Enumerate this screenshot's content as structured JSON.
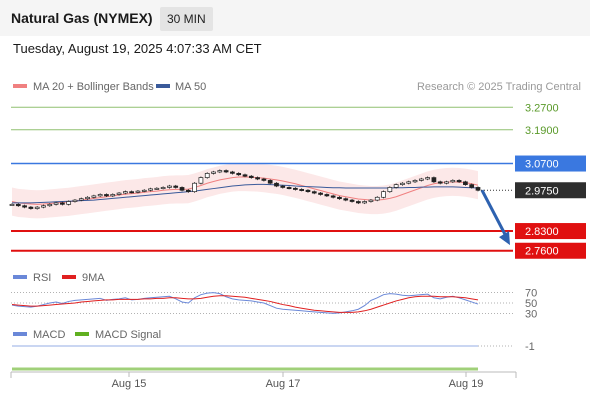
{
  "header": {
    "title": "Natural Gas (NYMEX)",
    "timeframe": "30 MIN",
    "datetime": "Tuesday, August 19, 2025 4:07:33 AM CET"
  },
  "colors": {
    "bollinger": "#f08080",
    "ma50": "#3a5a9a",
    "resistance": "#90c070",
    "pivot": "#3a78e0",
    "support": "#e01010",
    "rsi": "#6a88d8",
    "rsi_ma": "#e02020",
    "macd": "#6a88d8",
    "macd_signal": "#60b020",
    "arrow": "#2e62b0"
  },
  "chart_data": [
    {
      "type": "line",
      "legend": [
        {
          "name": "MA 20 + Bollinger Bands",
          "color": "#f08080"
        },
        {
          "name": "MA 50",
          "color": "#3a5a9a"
        }
      ],
      "legend_placement": "top-left",
      "attribution": "Research © 2025 Trading Central",
      "ylim": [
        2.72,
        3.31
      ],
      "levels": [
        {
          "value": 3.27,
          "label": "3.2700",
          "kind": "resistance"
        },
        {
          "value": 3.19,
          "label": "3.1900",
          "kind": "resistance"
        },
        {
          "value": 3.07,
          "label": "3.0700",
          "kind": "pivot"
        },
        {
          "value": 2.83,
          "label": "2.8300",
          "kind": "support"
        },
        {
          "value": 2.76,
          "label": "2.7600",
          "kind": "support"
        }
      ],
      "last_price": {
        "value": 2.975,
        "label": "2.9750"
      },
      "x_ticks": [
        "Aug 15",
        "Aug 17",
        "Aug 19"
      ],
      "close": [
        2.925,
        2.92,
        2.915,
        2.91,
        2.915,
        2.92,
        2.925,
        2.93,
        2.925,
        2.935,
        2.94,
        2.945,
        2.95,
        2.955,
        2.96,
        2.955,
        2.96,
        2.965,
        2.97,
        2.968,
        2.972,
        2.975,
        2.98,
        2.982,
        2.985,
        2.99,
        2.985,
        2.975,
        2.97,
        3.0,
        3.02,
        3.035,
        3.04,
        3.045,
        3.04,
        3.035,
        3.03,
        3.025,
        3.02,
        3.015,
        3.01,
        3.0,
        2.99,
        2.985,
        2.982,
        2.978,
        2.975,
        2.97,
        2.965,
        2.96,
        2.955,
        2.95,
        2.945,
        2.94,
        2.935,
        2.93,
        2.935,
        2.94,
        2.95,
        2.97,
        2.985,
        2.995,
        3.0,
        3.005,
        3.01,
        3.015,
        3.02,
        3.005,
        3.0,
        3.005,
        3.01,
        3.005,
        2.995,
        2.985,
        2.975
      ],
      "ma20": [
        2.935,
        2.93,
        2.928,
        2.926,
        2.925,
        2.926,
        2.928,
        2.93,
        2.932,
        2.934,
        2.937,
        2.94,
        2.943,
        2.946,
        2.949,
        2.952,
        2.955,
        2.958,
        2.961,
        2.963,
        2.965,
        2.968,
        2.97,
        2.972,
        2.975,
        2.977,
        2.978,
        2.978,
        2.979,
        2.985,
        2.992,
        3.0,
        3.006,
        3.012,
        3.016,
        3.02,
        3.022,
        3.022,
        3.021,
        3.02,
        3.018,
        3.015,
        3.012,
        3.008,
        3.003,
        2.998,
        2.992,
        2.986,
        2.98,
        2.974,
        2.968,
        2.962,
        2.956,
        2.952,
        2.948,
        2.944,
        2.942,
        2.94,
        2.94,
        2.942,
        2.946,
        2.952,
        2.96,
        2.968,
        2.976,
        2.984,
        2.992,
        2.998,
        3.002,
        3.004,
        3.005,
        3.004,
        3.002,
        2.998,
        2.993
      ],
      "ma50": [
        2.93,
        2.93,
        2.93,
        2.93,
        2.931,
        2.932,
        2.933,
        2.934,
        2.935,
        2.936,
        2.937,
        2.938,
        2.939,
        2.94,
        2.942,
        2.944,
        2.946,
        2.948,
        2.95,
        2.952,
        2.954,
        2.956,
        2.958,
        2.96,
        2.962,
        2.964,
        2.966,
        2.968,
        2.97,
        2.972,
        2.975,
        2.978,
        2.981,
        2.984,
        2.987,
        2.99,
        2.992,
        2.994,
        2.995,
        2.996,
        2.996,
        2.995,
        2.994,
        2.993,
        2.992,
        2.99,
        2.989,
        2.988,
        2.987,
        2.986,
        2.985,
        2.984,
        2.984,
        2.983,
        2.983,
        2.983,
        2.983,
        2.983,
        2.983,
        2.983,
        2.983,
        2.984,
        2.984,
        2.985,
        2.985,
        2.986,
        2.986,
        2.987,
        2.987,
        2.987,
        2.987,
        2.986,
        2.985,
        2.984,
        2.983
      ],
      "bb_half_width": 0.05,
      "forecast": {
        "from": 2.975,
        "to": 2.78
      }
    },
    {
      "type": "line",
      "legend": [
        {
          "name": "RSI",
          "color": "#6a88d8"
        },
        {
          "name": "9MA",
          "color": "#e02020"
        }
      ],
      "ylim": [
        25,
        75
      ],
      "levels": [
        {
          "value": 70,
          "label": "70"
        },
        {
          "value": 50,
          "label": "50"
        },
        {
          "value": 30,
          "label": "30"
        }
      ],
      "rsi": [
        46,
        44,
        43,
        42,
        44,
        47,
        50,
        52,
        49,
        53,
        55,
        56,
        57,
        58,
        59,
        55,
        57,
        58,
        60,
        56,
        57,
        59,
        60,
        61,
        62,
        63,
        58,
        52,
        50,
        60,
        66,
        69,
        70,
        68,
        62,
        58,
        56,
        55,
        54,
        52,
        50,
        45,
        40,
        38,
        37,
        36,
        35,
        34,
        33,
        32,
        31,
        30,
        31,
        33,
        35,
        38,
        45,
        55,
        60,
        66,
        68,
        67,
        65,
        64,
        65,
        66,
        67,
        60,
        58,
        61,
        63,
        60,
        56,
        52,
        48
      ],
      "rsi_ma": [
        47,
        46,
        45,
        44,
        44,
        45,
        46,
        47,
        48,
        49,
        50,
        52,
        53,
        54,
        55,
        56,
        56,
        57,
        57,
        57,
        57,
        58,
        58,
        59,
        59,
        60,
        60,
        59,
        58,
        58,
        59,
        61,
        63,
        64,
        64,
        63,
        62,
        61,
        59,
        57,
        55,
        53,
        50,
        47,
        45,
        42,
        40,
        38,
        36,
        35,
        34,
        33,
        32,
        32,
        32,
        33,
        35,
        38,
        42,
        46,
        50,
        54,
        57,
        60,
        62,
        63,
        63,
        63,
        62,
        62,
        62,
        61,
        60,
        58,
        56
      ]
    },
    {
      "type": "line",
      "legend": [
        {
          "name": "MACD",
          "color": "#6a88d8"
        },
        {
          "name": "MACD Signal",
          "color": "#60b020"
        }
      ],
      "level_label": "-1",
      "macd": [
        -1,
        -1,
        -1,
        -1,
        -1,
        -1,
        -1,
        -1,
        -1,
        -1,
        -1,
        -1,
        -1,
        -1,
        -1,
        -1,
        -1,
        -1,
        -1,
        -1,
        -1,
        -1,
        -1,
        -1,
        -1,
        -1,
        -1,
        -1,
        -1,
        -1,
        -1,
        -1,
        -1,
        -1,
        -1,
        -1,
        -1,
        -1,
        -1,
        -1,
        -1,
        -1,
        -1,
        -1,
        -1,
        -1,
        -1,
        -1,
        -1,
        -1,
        -1,
        -1,
        -1,
        -1,
        -1,
        -1,
        -1,
        -1,
        -1,
        -1,
        -1,
        -1,
        -1,
        -1,
        -1,
        -1,
        -1,
        -1,
        -1,
        -1,
        -1,
        -1,
        -1,
        -1,
        -1
      ]
    }
  ]
}
